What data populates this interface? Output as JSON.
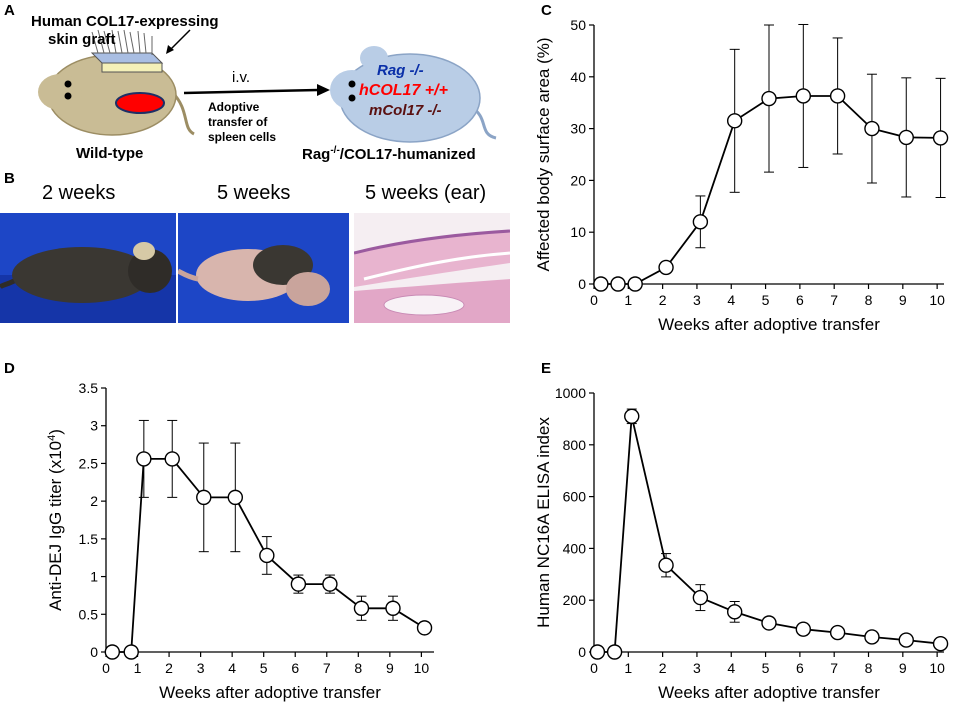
{
  "panels": {
    "A": {
      "label": "A",
      "graft_label_line1": "Human COL17-expressing",
      "graft_label_line2": "skin graft",
      "route": "i.v.",
      "transfer_line1": "Adoptive",
      "transfer_line2": "transfer of",
      "transfer_line3": "spleen cells",
      "donor": "Wild-type",
      "recipient_prefix": "Rag",
      "recipient_sup": "-/-",
      "recipient_suffix": "/COL17-humanized",
      "genotype1": "Rag -/-",
      "genotype2": "hCOL17 +/+",
      "genotype3": "mCol17 -/-",
      "colors": {
        "mouse_body": "#c9bc95",
        "mouse_outline": "#9c8d63",
        "recipient_body": "#b9cde6",
        "recipient_outline": "#8ba4c6",
        "graft": "#a9bee3",
        "ulcer": "#ff0000",
        "rag": "#0a2fa8",
        "hcol": "#ff0000",
        "mcol": "#5a1010"
      }
    },
    "B": {
      "label": "B",
      "titles": [
        "2 weeks",
        "5 weeks",
        "5 weeks (ear)"
      ],
      "colors": {
        "backdrop": "#1d46c6",
        "fur": "#3a3732",
        "skin": "#d8b5ad",
        "he_pink": "#e8b4cf",
        "he_purple": "#9b5a9f"
      }
    },
    "C": {
      "label": "C",
      "chart_data": {
        "type": "line",
        "title": "",
        "xlabel": "Weeks after adoptive transfer",
        "ylabel": "Affected body surface area (%)",
        "x": [
          0.2,
          0.7,
          1.2,
          2.1,
          3.1,
          4.1,
          5.1,
          6.1,
          7.1,
          8.1,
          9.1,
          10.1
        ],
        "values": [
          0,
          0,
          0,
          3.2,
          12,
          31.5,
          35.8,
          36.3,
          36.3,
          30,
          28.3,
          28.2
        ],
        "error": [
          0,
          0,
          0,
          0,
          5,
          13.8,
          14.2,
          13.8,
          11.2,
          10.5,
          11.5,
          11.5
        ],
        "xlim": [
          0,
          10.2
        ],
        "ylim": [
          0,
          50
        ],
        "xticks": [
          0,
          1,
          2,
          3,
          4,
          5,
          6,
          7,
          8,
          9,
          10
        ],
        "yticks": [
          0,
          10,
          20,
          30,
          40,
          50
        ],
        "ytick_labels": [
          "0",
          "10",
          "20",
          "30",
          "40",
          "50"
        ]
      }
    },
    "D": {
      "label": "D",
      "ylabel_main": "Anti-DEJ IgG titer (x10",
      "ylabel_sup": "4",
      "ylabel_end": ")",
      "chart_data": {
        "type": "line",
        "title": "",
        "xlabel": "Weeks after adoptive transfer",
        "ylabel": "Anti-DEJ IgG titer (x10^4)",
        "x": [
          0.2,
          0.8,
          1.2,
          2.1,
          3.1,
          4.1,
          5.1,
          6.1,
          7.1,
          8.1,
          9.1,
          10.1
        ],
        "values": [
          0,
          0,
          2.56,
          2.56,
          2.05,
          2.05,
          1.28,
          0.9,
          0.9,
          0.58,
          0.58,
          0.32
        ],
        "error": [
          0,
          0,
          0.51,
          0.51,
          0.72,
          0.72,
          0.25,
          0.12,
          0.12,
          0.16,
          0.16,
          0.04
        ],
        "xlim": [
          0,
          10.4
        ],
        "ylim": [
          0,
          3.5
        ],
        "xticks": [
          0,
          1,
          2,
          3,
          4,
          5,
          6,
          7,
          8,
          9,
          10
        ],
        "yticks": [
          0,
          0.5,
          1,
          1.5,
          2,
          2.5,
          3,
          3.5
        ],
        "ytick_labels": [
          "0",
          "0.5",
          "1",
          "1.5",
          "2",
          "2.5",
          "3",
          "3.5"
        ]
      }
    },
    "E": {
      "label": "E",
      "chart_data": {
        "type": "line",
        "title": "",
        "xlabel": "Weeks after adoptive transfer",
        "ylabel": "Human NC16A ELISA index",
        "x": [
          0.1,
          0.6,
          1.1,
          2.1,
          3.1,
          4.1,
          5.1,
          6.1,
          7.1,
          8.1,
          9.1,
          10.1
        ],
        "values": [
          0,
          0,
          910,
          335,
          210,
          155,
          112,
          88,
          75,
          58,
          46,
          32
        ],
        "error": [
          0,
          0,
          28,
          45,
          50,
          40,
          12,
          10,
          10,
          12,
          12,
          8
        ],
        "xlim": [
          0,
          10.2
        ],
        "ylim": [
          0,
          1000
        ],
        "xticks": [
          0,
          1,
          2,
          3,
          4,
          5,
          6,
          7,
          8,
          9,
          10
        ],
        "yticks": [
          0,
          200,
          400,
          600,
          800,
          1000
        ],
        "ytick_labels": [
          "0",
          "200",
          "400",
          "600",
          "800",
          "1000"
        ]
      }
    }
  }
}
